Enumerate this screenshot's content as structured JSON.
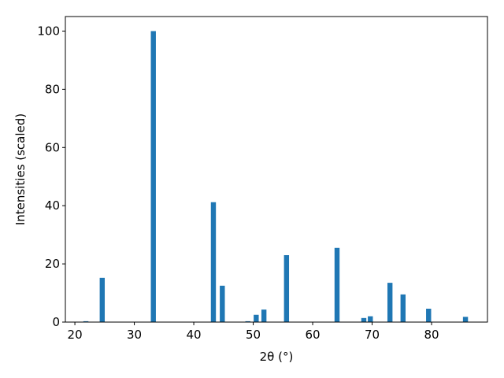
{
  "chart_data": {
    "type": "bar",
    "x_label": "2θ (°)",
    "y_label": "Intensities (scaled)",
    "x": [
      21.85,
      24.6,
      33.2,
      43.3,
      44.8,
      49.1,
      50.5,
      51.8,
      55.6,
      64.1,
      68.6,
      69.7,
      73.0,
      75.2,
      79.5,
      85.7
    ],
    "values": [
      0.3,
      15.2,
      100,
      41.2,
      12.5,
      0.3,
      2.5,
      4.3,
      23,
      25.5,
      1.4,
      2,
      13.5,
      9.5,
      4.6,
      1.8
    ],
    "color": "#1f77b4",
    "xlim": [
      18.4,
      89.4
    ],
    "xticks": [
      20,
      30,
      40,
      50,
      60,
      70,
      80
    ],
    "ylim": [
      0,
      105
    ],
    "yticks": [
      0,
      20,
      40,
      60,
      80,
      100
    ],
    "grid": false
  }
}
